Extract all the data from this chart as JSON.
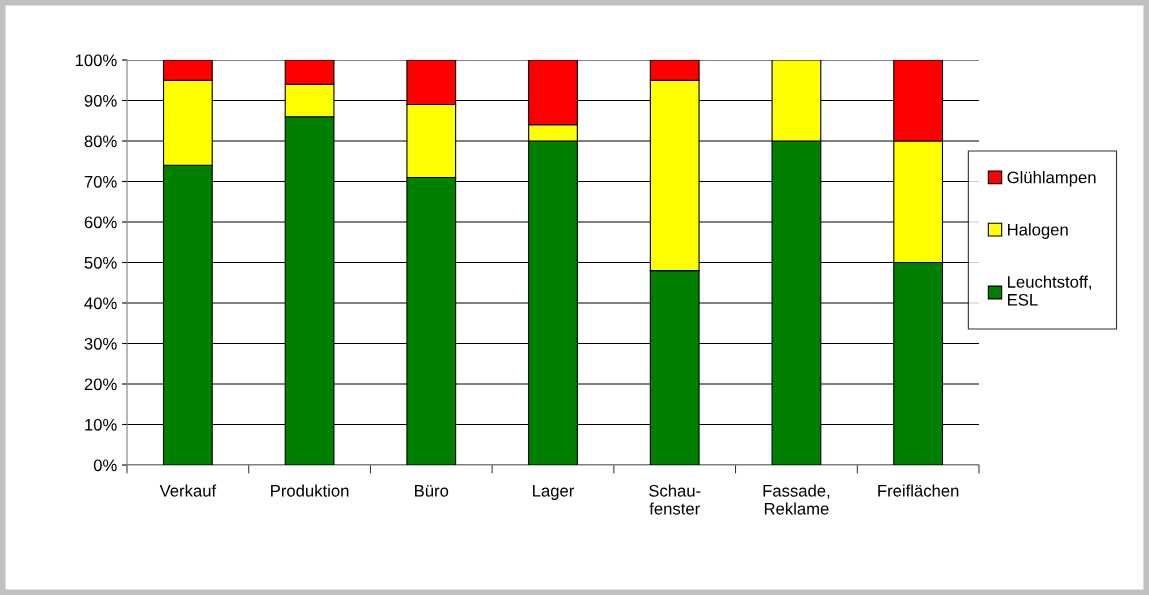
{
  "chart_data": {
    "type": "bar",
    "stacked": true,
    "categories": [
      "Verkauf",
      "Produktion",
      "Büro",
      "Lager",
      "Schau-\nfenster",
      "Fassade,\nReklame",
      "Freiflächen"
    ],
    "series": [
      {
        "name": "Leuchtstoff,\nESL",
        "color": "#008000",
        "values": [
          74,
          86,
          71,
          80,
          48,
          80,
          50
        ]
      },
      {
        "name": "Halogen",
        "color": "#ffff00",
        "values": [
          21,
          8,
          18,
          4,
          47,
          20,
          30
        ]
      },
      {
        "name": "Glühlampen",
        "color": "#ff0000",
        "values": [
          5,
          6,
          11,
          16,
          5,
          0,
          20
        ]
      }
    ],
    "ylim": [
      0,
      100
    ],
    "yticks": [
      {
        "value": 0,
        "label": "0%"
      },
      {
        "value": 10,
        "label": "10%"
      },
      {
        "value": 20,
        "label": "20%"
      },
      {
        "value": 30,
        "label": "30%"
      },
      {
        "value": 40,
        "label": "40%"
      },
      {
        "value": 50,
        "label": "50%"
      },
      {
        "value": 60,
        "label": "60%"
      },
      {
        "value": 70,
        "label": "70%"
      },
      {
        "value": 80,
        "label": "80%"
      },
      {
        "value": 90,
        "label": "90%"
      },
      {
        "value": 100,
        "label": "100%"
      }
    ],
    "grid": "y",
    "legend": "right"
  }
}
